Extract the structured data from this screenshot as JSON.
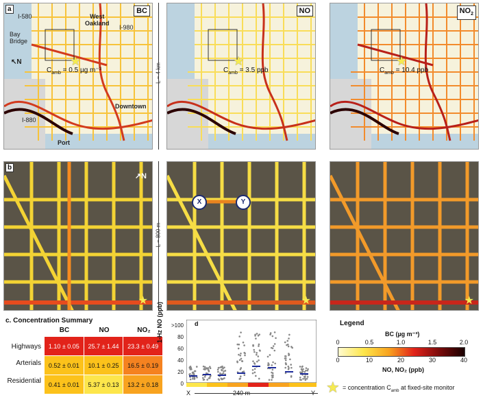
{
  "panel_a": {
    "letter": "a",
    "maps": [
      {
        "pollutant": "BC",
        "camb_prefix": "C",
        "camb_sub": "amb",
        "camb_value": "= 0.5 µg m⁻³"
      },
      {
        "pollutant": "NO",
        "camb_prefix": "C",
        "camb_sub": "amb",
        "camb_value": "= 3.5 ppb"
      },
      {
        "pollutant": "NO",
        "pollutant_sub": "2",
        "camb_prefix": "C",
        "camb_sub": "amb",
        "camb_value": "= 10.4 ppb"
      }
    ],
    "places": {
      "i580": "I-580",
      "west_oakland": "West\nOakland",
      "i980_top": "I-980",
      "bay_bridge": "Bay\nBridge",
      "north": "N",
      "downtown": "Downtown",
      "i880": "I-880",
      "port": "Port",
      "i980_right": "I-980"
    },
    "scale_label": "L ~ 4 km"
  },
  "panel_b": {
    "letter": "b",
    "north": "N",
    "scale_label": "L ~ 800 m",
    "marker_x": "X",
    "marker_y": "Y"
  },
  "panel_c": {
    "title": "c. Concentration Summary",
    "columns": [
      "BC",
      "NO",
      "NO₂"
    ],
    "rows": [
      {
        "label": "Highways",
        "cells": [
          "1.10 ± 0.05",
          "25.7 ± 1.44",
          "23.3 ± 0.49"
        ],
        "colors": [
          "#e2231a",
          "#e2231a",
          "#e2231a"
        ]
      },
      {
        "label": "Arterials",
        "cells": [
          "0.52 ± 0.01",
          "10.1 ± 0.25",
          "16.5 ± 0.19"
        ],
        "colors": [
          "#fcc21b",
          "#fcc21b",
          "#f58220"
        ]
      },
      {
        "label": "Residential",
        "cells": [
          "0.41 ± 0.01",
          "5.37 ± 0.13",
          "13.2 ± 0.18"
        ],
        "colors": [
          "#fcc21b",
          "#fde64b",
          "#f8a31f"
        ]
      }
    ]
  },
  "panel_d": {
    "letter": "d",
    "ylabel": "1-Hz NO (ppb)",
    "yticks": [
      ">100",
      "80",
      "60",
      "40",
      "20",
      "0"
    ],
    "x_left": "X",
    "x_right": "Y",
    "x_span": "240 m"
  },
  "legend": {
    "title": "Legend",
    "bc_label": "BC (µg m⁻³)",
    "bc_ticks": [
      "0",
      "0.5",
      "1.0",
      "1.5",
      "2.0"
    ],
    "no_ticks": [
      "0",
      "10",
      "20",
      "30",
      "40"
    ],
    "no_label": "NO, NO₂ (ppb)",
    "star_text": "= concentration C",
    "star_sub": "amb",
    "star_tail": " at fixed-site monitor"
  },
  "colors": {
    "low": "#fff27a",
    "mid": "#f7a21b",
    "high": "#d7261e",
    "max": "#2b0000",
    "star": "#f5ea52"
  }
}
